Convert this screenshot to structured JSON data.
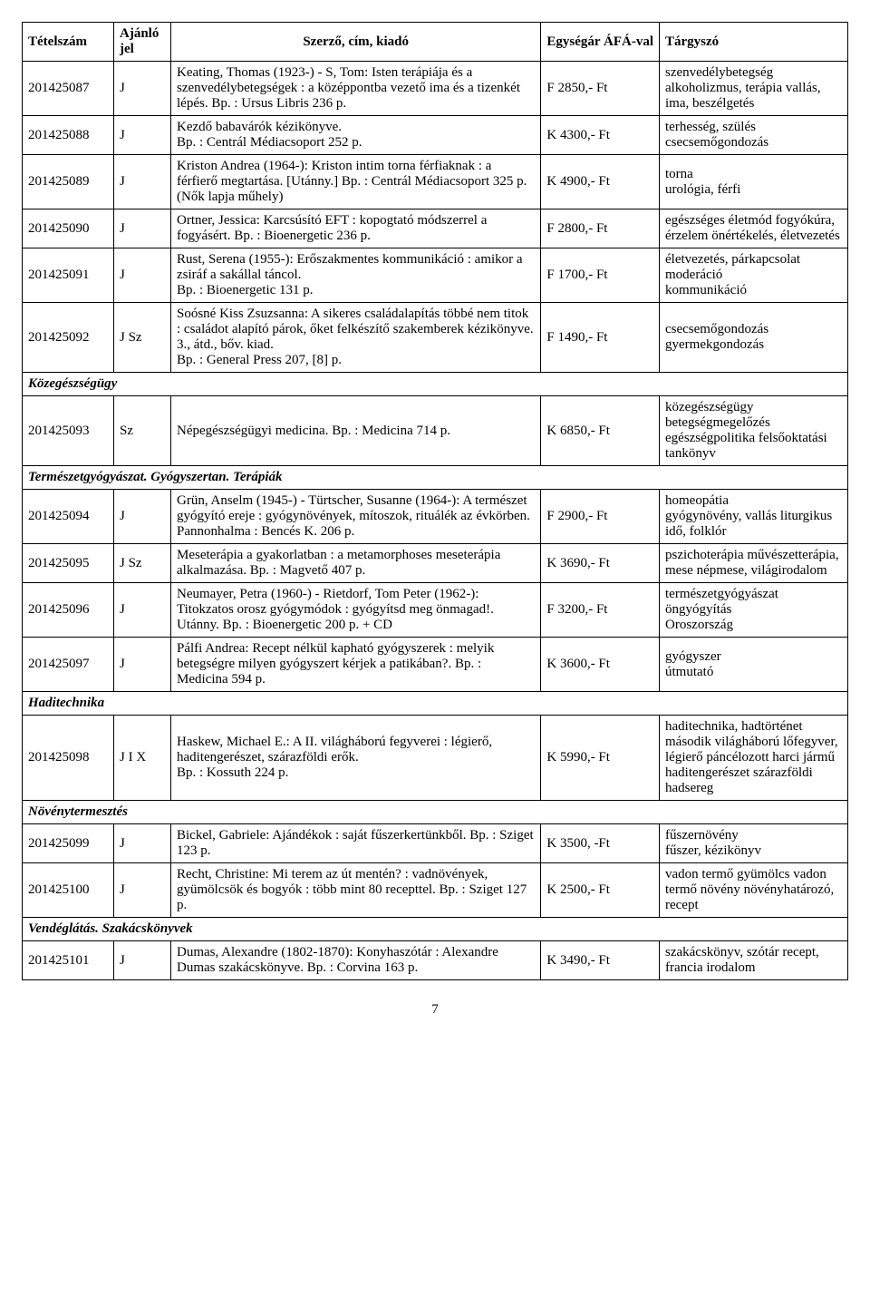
{
  "headers": {
    "id": "Tételszám",
    "jel": "Ajánló jel",
    "main": "Szerző, cím, kiadó",
    "price": "Egységár ÁFÁ-val",
    "tag": "Tárgyszó"
  },
  "rows": [
    {
      "type": "data",
      "id": "201425087",
      "jel": "J",
      "main": "Keating, Thomas (1923-) - S, Tom: Isten terápiája és a szenvedélybetegségek : a középpontba vezető ima és a tizenkét lépés. Bp. : Ursus Libris 236 p.",
      "price": "F 2850,- Ft",
      "tag": "szenvedélybetegség alkoholizmus, terápia vallás, ima, beszélgetés"
    },
    {
      "type": "data",
      "id": "201425088",
      "jel": "J",
      "main": "Kezdő babavárók kézikönyve.\nBp. : Centrál Médiacsoport 252 p.",
      "price": "K 4300,- Ft",
      "tag": "terhesség, szülés csecsemőgondozás"
    },
    {
      "type": "data",
      "id": "201425089",
      "jel": "J",
      "main": "Kriston Andrea (1964-): Kriston intim torna férfiaknak : a férfierő megtartása. [Utánny.] Bp. : Centrál Médiacsoport 325 p. (Nők lapja műhely)",
      "price": "K 4900,- Ft",
      "tag": "torna\nurológia, férfi"
    },
    {
      "type": "data",
      "id": "201425090",
      "jel": "J",
      "main": "Ortner, Jessica: Karcsúsító EFT : kopogtató módszerrel a fogyásért. Bp. : Bioenergetic 236 p.",
      "price": "F 2800,- Ft",
      "tag": "egészséges életmód fogyókúra, érzelem önértékelés, életvezetés"
    },
    {
      "type": "data",
      "id": "201425091",
      "jel": "J",
      "main": "Rust, Serena (1955-): Erőszakmentes kommunikáció : amikor a zsiráf a sakállal táncol.\nBp. : Bioenergetic 131 p.",
      "price": "F 1700,- Ft",
      "tag": "életvezetés, párkapcsolat moderáció\nkommunikáció"
    },
    {
      "type": "data",
      "id": "201425092",
      "jel": "J Sz",
      "main": "Soósné Kiss Zsuzsanna: A sikeres családalapítás többé nem titok : családot alapító párok, őket felkészítő szakemberek kézikönyve. 3., átd., bőv. kiad.\nBp. : General Press 207, [8] p.",
      "price": "F 1490,- Ft",
      "tag": "csecsemőgondozás gyermekgondozás"
    },
    {
      "type": "section",
      "label": "Közegészségügy"
    },
    {
      "type": "data",
      "id": "201425093",
      "jel": "Sz",
      "main": "Népegészségügyi medicina. Bp. : Medicina 714 p.",
      "price": "K 6850,- Ft",
      "tag": "közegészségügy betegségmegelőzés egészségpolitika felsőoktatási tankönyv"
    },
    {
      "type": "section",
      "label": "Természetgyógyászat. Gyógyszertan. Terápiák"
    },
    {
      "type": "data",
      "id": "201425094",
      "jel": "J",
      "main": "Grün, Anselm (1945-) - Türtscher, Susanne (1964-): A természet gyógyító ereje : gyógynövények, mítoszok, rituálék az évkörben. Pannonhalma : Bencés K. 206 p.",
      "price": "F 2900,- Ft",
      "tag": "homeopátia\ngyógynövény, vallás liturgikus idő, folklór"
    },
    {
      "type": "data",
      "id": "201425095",
      "jel": "J Sz",
      "main": "Meseterápia a gyakorlatban : a metamorphoses meseterápia alkalmazása. Bp. : Magvető 407 p.",
      "price": "K 3690,- Ft",
      "tag": "pszichoterápia művészetterápia, mese népmese, világirodalom"
    },
    {
      "type": "data",
      "id": "201425096",
      "jel": "J",
      "main": "Neumayer, Petra (1960-) - Rietdorf, Tom Peter (1962-): Titokzatos orosz gyógymódok : gyógyítsd meg önmagad!. Utánny. Bp. : Bioenergetic 200 p. + CD",
      "price": "F 3200,- Ft",
      "tag": "természetgyógyászat öngyógyítás\nOroszország"
    },
    {
      "type": "data",
      "id": "201425097",
      "jel": "J",
      "main": "Pálfi Andrea: Recept nélkül kapható gyógyszerek : melyik betegségre milyen gyógyszert kérjek a patikában?. Bp. : Medicina 594 p.",
      "price": "K 3600,- Ft",
      "tag": "gyógyszer\nútmutató"
    },
    {
      "type": "section",
      "label": "Haditechnika"
    },
    {
      "type": "data",
      "id": "201425098",
      "jel": "J I X",
      "main": "Haskew, Michael E.: A II. világháború fegyverei : légierő, haditengerészet, szárazföldi erők.\nBp. : Kossuth 224 p.",
      "price": "K 5990,- Ft",
      "tag": "haditechnika, hadtörténet második világháború lőfegyver, légierő páncélozott harci jármű haditengerészet szárazföldi hadsereg"
    },
    {
      "type": "section",
      "label": "Növénytermesztés"
    },
    {
      "type": "data",
      "id": "201425099",
      "jel": "J",
      "main": "Bickel, Gabriele: Ajándékok : saját fűszerkertünkből. Bp. : Sziget 123 p.",
      "price": "K 3500, -Ft",
      "tag": "fűszernövény\nfűszer, kézikönyv"
    },
    {
      "type": "data",
      "id": "201425100",
      "jel": "J",
      "main": "Recht, Christine: Mi terem az út mentén? : vadnövények, gyümölcsök és bogyók : több mint 80 recepttel. Bp. : Sziget 127 p.",
      "price": "K 2500,- Ft",
      "tag": "vadon termő gyümölcs vadon termő növény növényhatározó, recept"
    },
    {
      "type": "section",
      "label": "Vendéglátás. Szakácskönyvek"
    },
    {
      "type": "data",
      "id": "201425101",
      "jel": "J",
      "main": "Dumas, Alexandre (1802-1870): Konyhaszótár : Alexandre Dumas szakácskönyve. Bp. : Corvina 163 p.",
      "price": "K 3490,- Ft",
      "tag": "szakácskönyv, szótár recept, francia irodalom"
    }
  ],
  "page_number": "7"
}
